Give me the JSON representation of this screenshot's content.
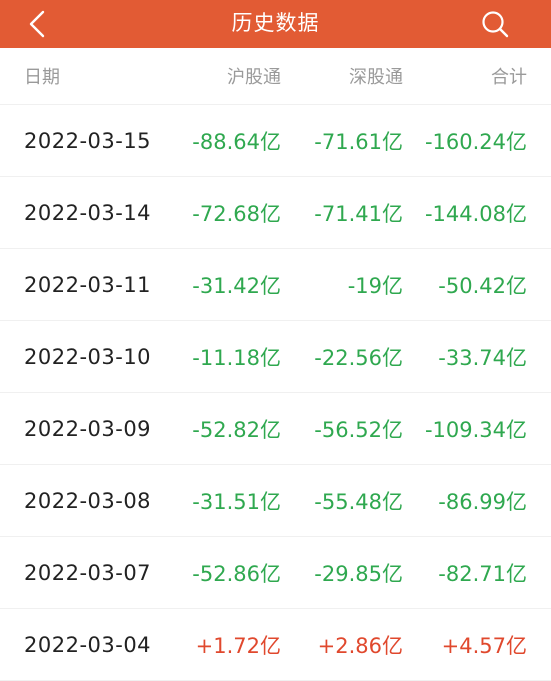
{
  "header": {
    "title": "历史数据",
    "back_icon": "chevron-left-icon",
    "search_icon": "search-icon",
    "background_color": "#e25b34"
  },
  "columns": {
    "date": "日期",
    "sh": "沪股通",
    "sz": "深股通",
    "total": "合计"
  },
  "colors": {
    "negative": "#2fa84f",
    "positive": "#e0482d"
  },
  "rows": [
    {
      "date": "2022-03-15",
      "sh": "-88.64亿",
      "sz": "-71.61亿",
      "total": "-160.24亿"
    },
    {
      "date": "2022-03-14",
      "sh": "-72.68亿",
      "sz": "-71.41亿",
      "total": "-144.08亿"
    },
    {
      "date": "2022-03-11",
      "sh": "-31.42亿",
      "sz": "-19亿",
      "total": "-50.42亿"
    },
    {
      "date": "2022-03-10",
      "sh": "-11.18亿",
      "sz": "-22.56亿",
      "total": "-33.74亿"
    },
    {
      "date": "2022-03-09",
      "sh": "-52.82亿",
      "sz": "-56.52亿",
      "total": "-109.34亿"
    },
    {
      "date": "2022-03-08",
      "sh": "-31.51亿",
      "sz": "-55.48亿",
      "total": "-86.99亿"
    },
    {
      "date": "2022-03-07",
      "sh": "-52.86亿",
      "sz": "-29.85亿",
      "total": "-82.71亿"
    },
    {
      "date": "2022-03-04",
      "sh": "+1.72亿",
      "sz": "+2.86亿",
      "total": "+4.57亿"
    }
  ]
}
